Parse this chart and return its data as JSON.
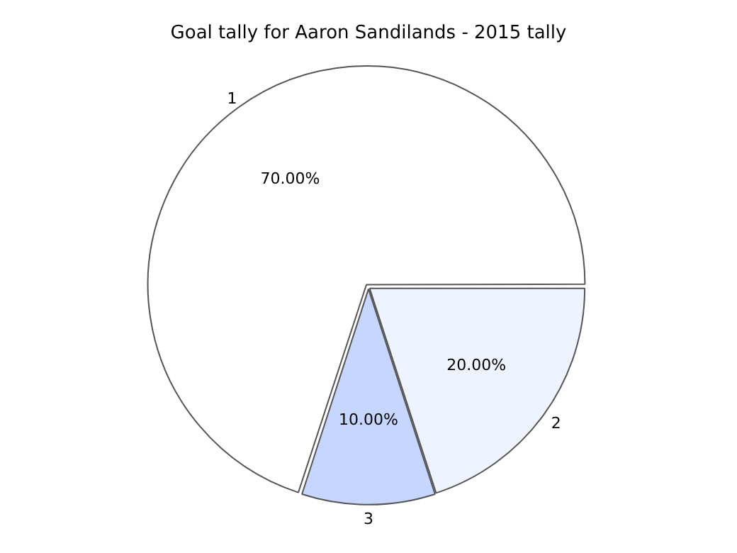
{
  "chart_data": {
    "type": "pie",
    "title": "Goal tally for Aaron Sandilands - 2015 tally",
    "categories": [
      "1",
      "2",
      "3"
    ],
    "values": [
      70,
      20,
      10
    ],
    "colors": [
      "#ffffff",
      "#eef3ff",
      "#c6d6ff"
    ],
    "value_labels": [
      "70.00%",
      "20.00%",
      "10.00%"
    ],
    "legend": false
  }
}
